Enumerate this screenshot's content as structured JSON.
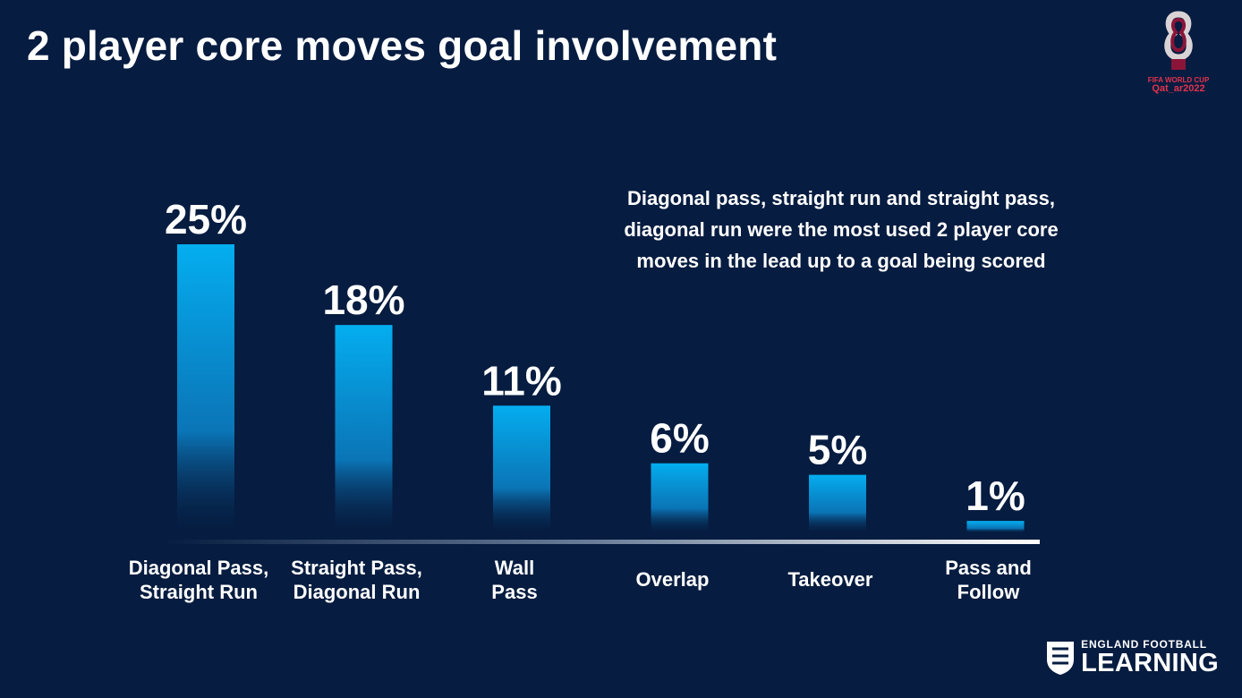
{
  "header": {
    "title": "2 player core moves goal involvement"
  },
  "logo_worldcup": {
    "line1": "FIFA WORLD CUP",
    "line2": "Qat_ar2022",
    "icon": "world-cup-trophy-icon"
  },
  "annotation": [
    "Diagonal pass, straight run and straight pass,",
    "diagonal run were the most used 2 player core",
    "moves in the lead up to a goal being scored"
  ],
  "logo_england": {
    "line1": "ENGLAND FOOTBALL",
    "line2": "LEARNING",
    "icon": "three-lions-crest-icon"
  },
  "colors": {
    "background": "#061c40",
    "bar": "#04aef0",
    "text": "#ffffff"
  },
  "chart_data": {
    "type": "bar",
    "title": "",
    "xlabel": "",
    "ylabel": "",
    "ylim": [
      0,
      25
    ],
    "grid": false,
    "categories": [
      [
        "Diagonal Pass,",
        "Straight Run"
      ],
      [
        "Straight Pass,",
        "Diagonal Run"
      ],
      [
        "Wall",
        "Pass"
      ],
      [
        "Overlap"
      ],
      [
        "Takeover"
      ],
      [
        "Pass and",
        "Follow"
      ]
    ],
    "values": [
      25,
      18,
      11,
      6,
      5,
      1
    ],
    "value_labels": [
      "25%",
      "18%",
      "11%",
      "6%",
      "5%",
      "1%"
    ]
  }
}
